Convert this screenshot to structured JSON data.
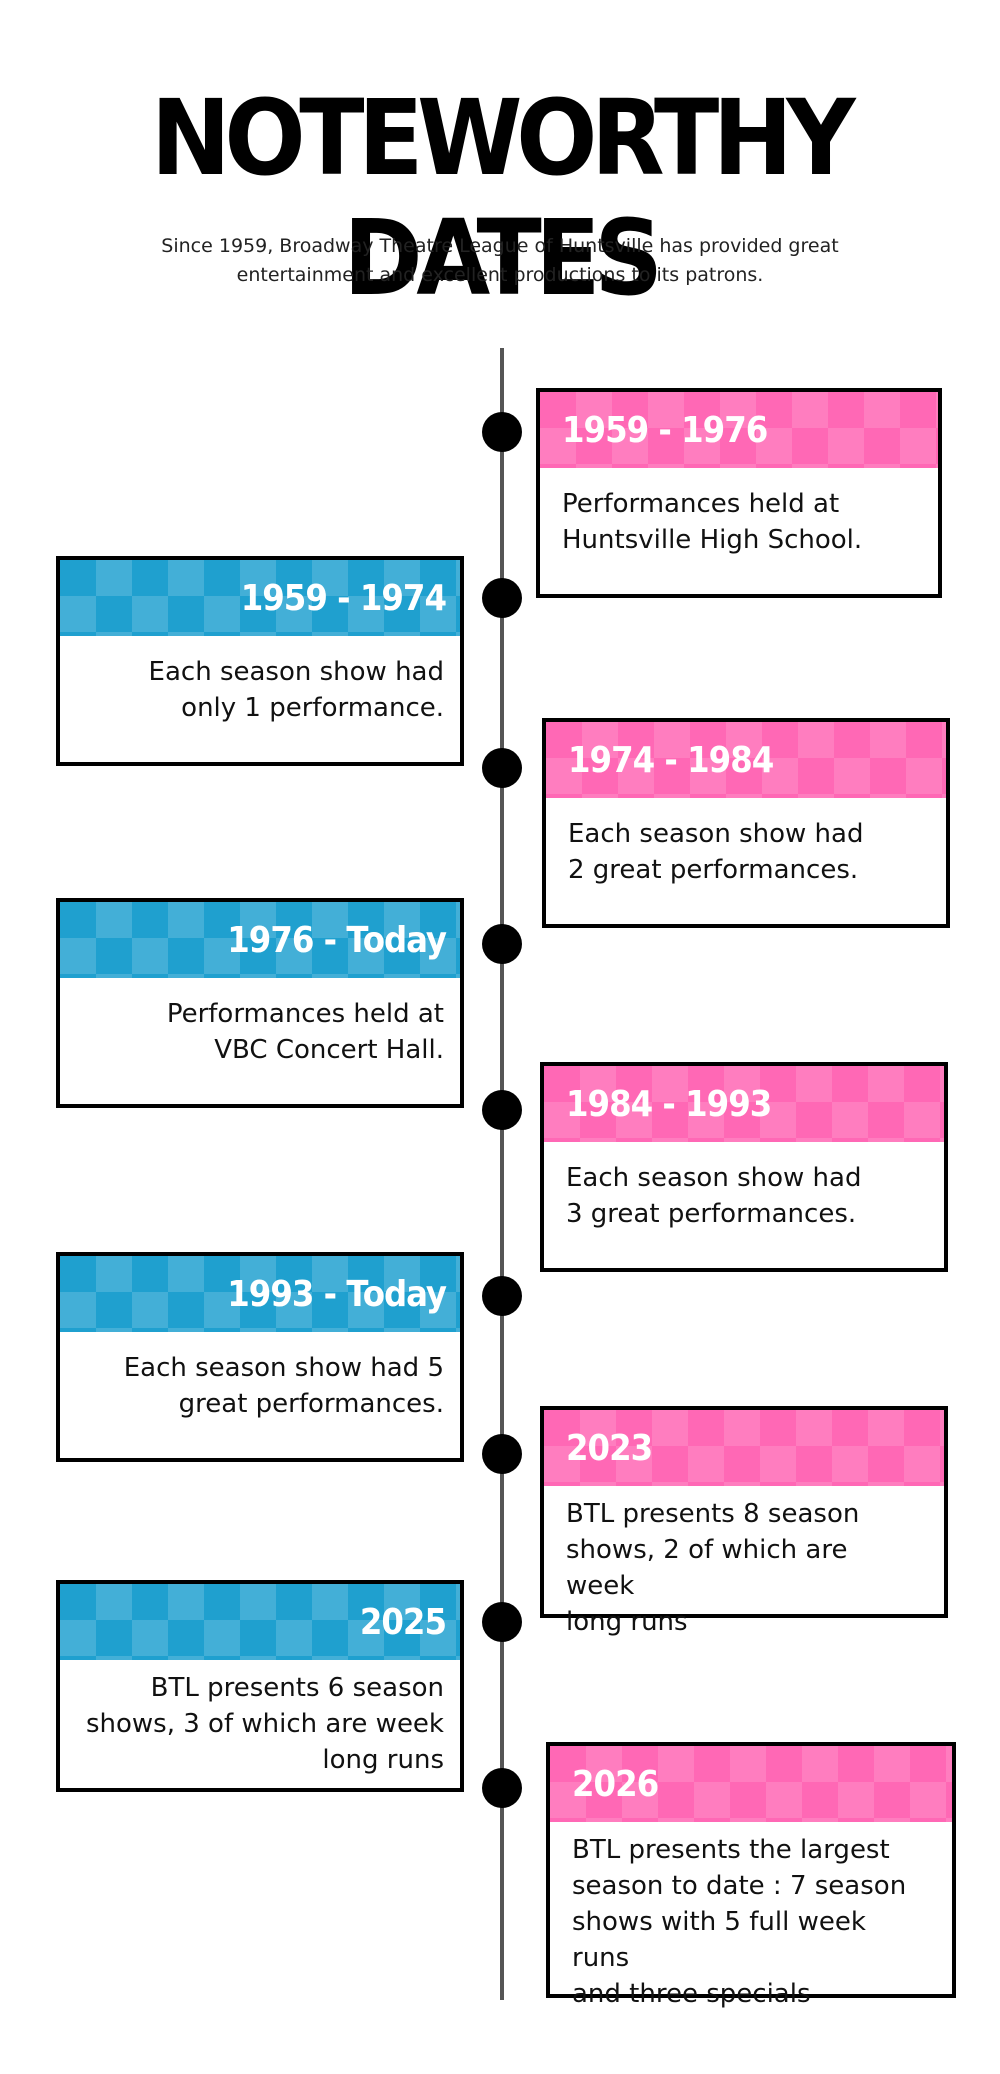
{
  "title": "NOTEWORTHY DATES",
  "subtitle": "Since 1959, Broadway Theatre League of Huntsville has provided great\nentertainment and excellent productions to its patrons.",
  "colors": {
    "pink": "#ff68b5",
    "blue": "#1fa0cf",
    "line": "#555555",
    "dot": "#000000"
  },
  "events": [
    {
      "side": "right",
      "color": "pink",
      "heading": "1959 - 1976",
      "text": "Performances held at\nHuntsville High School."
    },
    {
      "side": "left",
      "color": "blue",
      "heading": "1959 - 1974",
      "text": "Each season show had\nonly 1  performance."
    },
    {
      "side": "right",
      "color": "pink",
      "heading": "1974 - 1984",
      "text": "Each season show had\n2 great performances."
    },
    {
      "side": "left",
      "color": "blue",
      "heading": "1976 - Today",
      "text": "Performances held at\nVBC Concert Hall."
    },
    {
      "side": "right",
      "color": "pink",
      "heading": "1984 - 1993",
      "text": "Each season show had\n3 great performances."
    },
    {
      "side": "left",
      "color": "blue",
      "heading": "1993 - Today",
      "text": "Each season show had 5\ngreat performances."
    },
    {
      "side": "right",
      "color": "pink",
      "heading": "2023",
      "text": "BTL presents 8 season\nshows, 2 of which are week\nlong runs"
    },
    {
      "side": "left",
      "color": "blue",
      "heading": "2025",
      "text": "BTL presents 6 season\nshows, 3 of which are week\nlong runs"
    },
    {
      "side": "right",
      "color": "pink",
      "heading": "2026",
      "text": "BTL presents the largest\nseason to date : 7 season\nshows with 5 full week runs\nand three specials"
    }
  ]
}
